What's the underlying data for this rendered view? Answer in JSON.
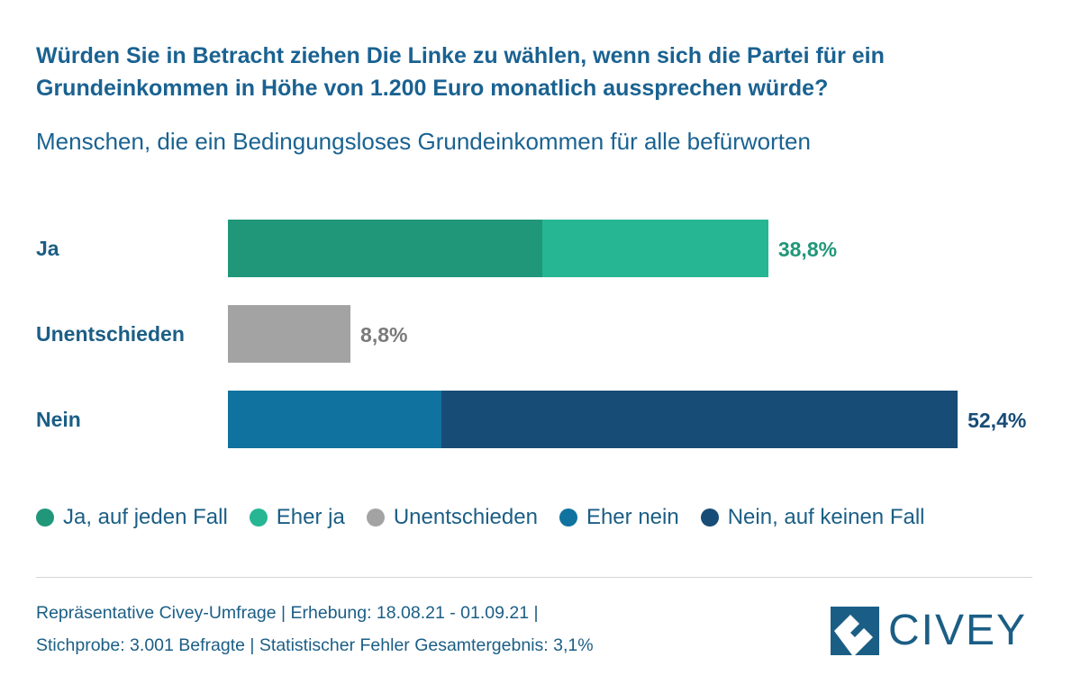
{
  "title": "Würden Sie in Betracht ziehen Die Linke zu wählen, wenn sich die Partei für ein Grundeinkommen in Höhe von 1.200 Euro monatlich aussprechen würde?",
  "subtitle": "Menschen, die ein Bedingungsloses Grundeinkommen für alle befürworten",
  "chart_data": {
    "type": "bar",
    "orientation": "horizontal",
    "stacked": true,
    "categories": [
      "Ja",
      "Unentschieden",
      "Nein"
    ],
    "totals": [
      "38,8%",
      "8,8%",
      "52,4%"
    ],
    "total_colors": [
      "#21977a",
      "#7a7a7a",
      "#174c76"
    ],
    "series": [
      {
        "name": "Ja, auf jeden Fall",
        "color": "#21977a",
        "values": [
          22.6,
          0,
          0
        ]
      },
      {
        "name": "Eher ja",
        "color": "#26b694",
        "values": [
          16.2,
          0,
          0
        ]
      },
      {
        "name": "Unentschieden",
        "color": "#a3a3a3",
        "values": [
          0,
          8.8,
          0
        ]
      },
      {
        "name": "Eher nein",
        "color": "#10729e",
        "values": [
          0,
          0,
          15.3
        ]
      },
      {
        "name": "Nein, auf keinen Fall",
        "color": "#174c76",
        "values": [
          0,
          0,
          37.1
        ]
      }
    ],
    "legend_position": "bottom",
    "grid": false
  },
  "footer": {
    "line1": "Repräsentative Civey-Umfrage | Erhebung: 18.08.21 - 01.09.21 |",
    "line2": "Stichprobe: 3.001 Befragte | Statistischer Fehler Gesamtergebnis: 3,1%"
  },
  "logo": {
    "text": "CIVEY",
    "color": "#1b5e85"
  }
}
